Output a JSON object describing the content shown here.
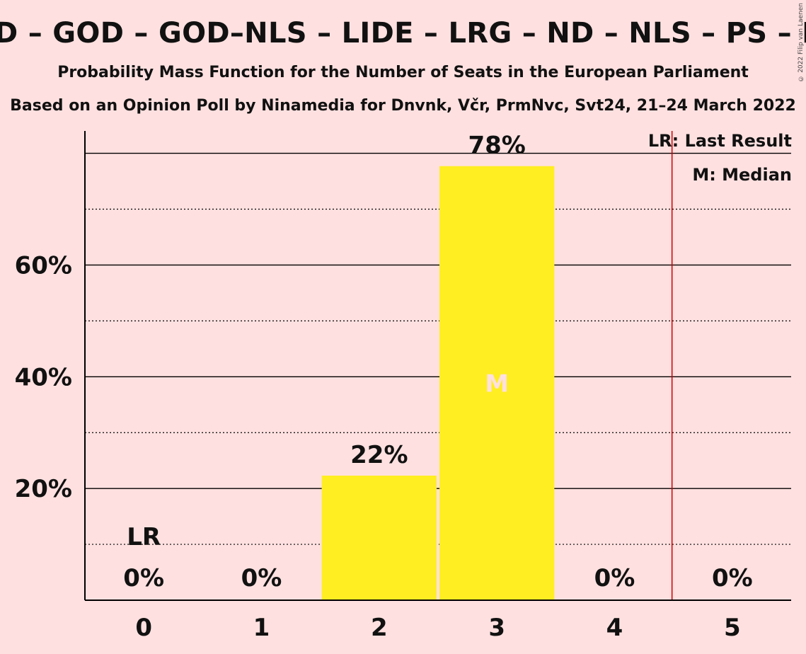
{
  "chart_data": {
    "type": "bar",
    "title": "D – GOD – GOD–NLS – LIDE – LRG – ND – NLS – PS – P",
    "subtitle": "Probability Mass Function for the Number of Seats in the European Parliament",
    "subtitle2": "Based on an Opinion Poll by Ninamedia for Dnvnk, Včr, PrmNvc, Svt24, 21–24 March 2022",
    "categories": [
      "0",
      "1",
      "2",
      "3",
      "4",
      "5"
    ],
    "values": [
      0,
      0,
      22.3,
      77.7,
      0,
      0
    ],
    "value_labels": [
      "0%",
      "0%",
      "22%",
      "78%",
      "0%",
      "0%"
    ],
    "y_ticks": [
      20,
      40,
      60
    ],
    "y_tick_labels": [
      "20%",
      "40%",
      "60%"
    ],
    "ylim": [
      0,
      84
    ],
    "last_result_seat": 0,
    "last_result_label": "LR",
    "median_seat": 3,
    "median_label": "M",
    "legend": [
      "LR: Last Result",
      "M: Median"
    ],
    "legend_position": "top-right",
    "grid": true,
    "colors": {
      "background": "#ffe0e0",
      "bar": "#ffee22",
      "last_result_line": "#cc0000",
      "median_text": "#ffe0e0",
      "axis": "#000000"
    }
  },
  "copyright": "© 2022 Filip van Laenen"
}
